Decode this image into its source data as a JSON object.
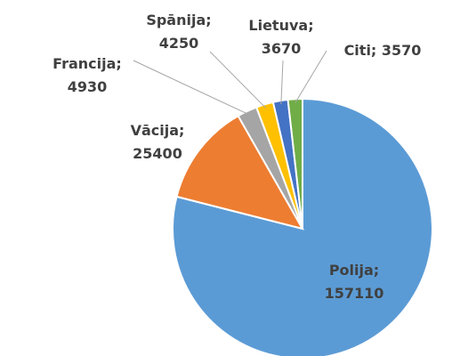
{
  "chart_data": {
    "type": "pie",
    "values": [
      157110,
      25400,
      4930,
      4250,
      3670,
      3570
    ],
    "value_labels": [
      "Polija; 157110",
      "Vācija; 25400",
      "Francija; 4930",
      "Spānija; 4250",
      "Lietuva; 3670",
      "Citi; 3570"
    ],
    "colors": [
      "#5b9bd5",
      "#ed7d31",
      "#a5a5a5",
      "#ffc000",
      "#4472c4",
      "#70ad47"
    ]
  }
}
